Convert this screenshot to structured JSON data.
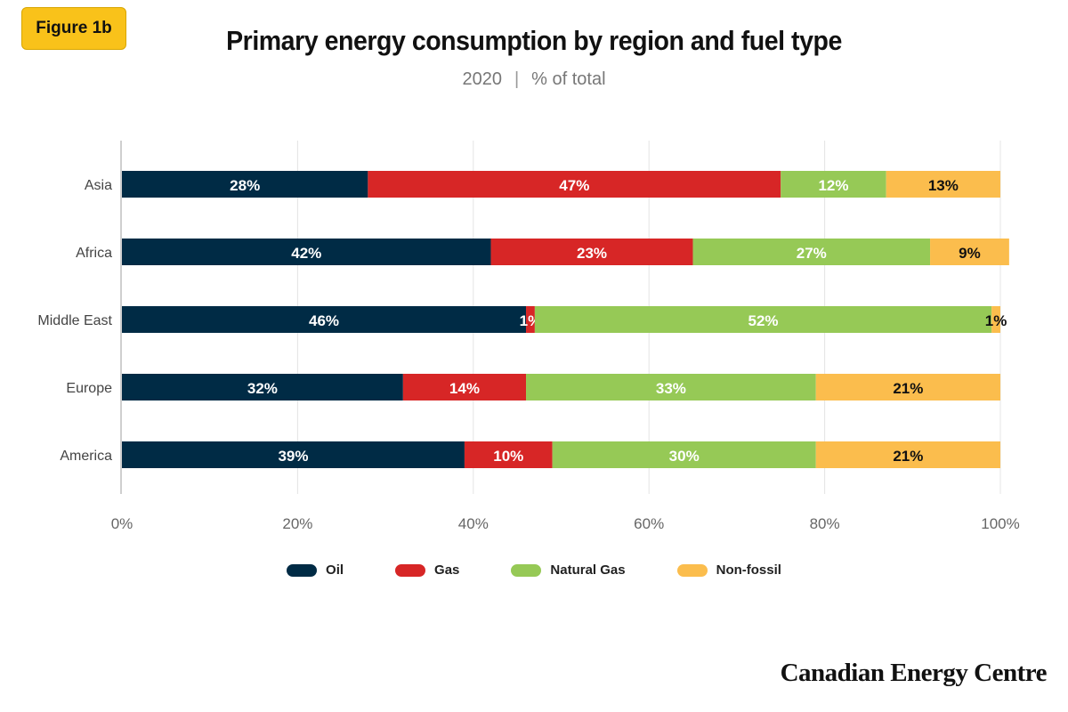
{
  "badge": "Figure 1b",
  "chart_data": {
    "type": "bar",
    "orientation": "horizontal",
    "stacked": true,
    "title": "Primary energy consumption by region and fuel type",
    "subtitle_year": "2020",
    "subtitle_unit": "% of total",
    "categories": [
      "Asia",
      "Africa",
      "Middle East",
      "Europe",
      "America"
    ],
    "series": [
      {
        "name": "Oil",
        "color": "#002b45",
        "label_color": "#ffffff",
        "values": [
          28,
          42,
          46,
          32,
          39
        ],
        "labels": [
          "28%",
          "42%",
          "46%",
          "32%",
          "39%"
        ]
      },
      {
        "name": "Gas",
        "color": "#d72626",
        "label_color": "#ffffff",
        "values": [
          47,
          23,
          1,
          14,
          10
        ],
        "labels": [
          "47%",
          "23%",
          "1%",
          "14%",
          "10%"
        ]
      },
      {
        "name": "Natural Gas",
        "color": "#96c956",
        "label_color": "#ffffff",
        "values": [
          12,
          27,
          52,
          33,
          30
        ],
        "labels": [
          "12%",
          "27%",
          "52%",
          "33%",
          "30%"
        ]
      },
      {
        "name": "Non-fossil",
        "color": "#fbbd4d",
        "label_color": "#111111",
        "values": [
          13,
          9,
          1,
          21,
          21
        ],
        "labels": [
          "13%",
          "9%",
          "1%",
          "21%",
          "21%"
        ]
      }
    ],
    "xlim": [
      0,
      100
    ],
    "xticks": [
      "0%",
      "20%",
      "40%",
      "60%",
      "80%",
      "100%"
    ],
    "grid": true,
    "legend": "bottom"
  },
  "brand": "Canadian Energy Centre"
}
